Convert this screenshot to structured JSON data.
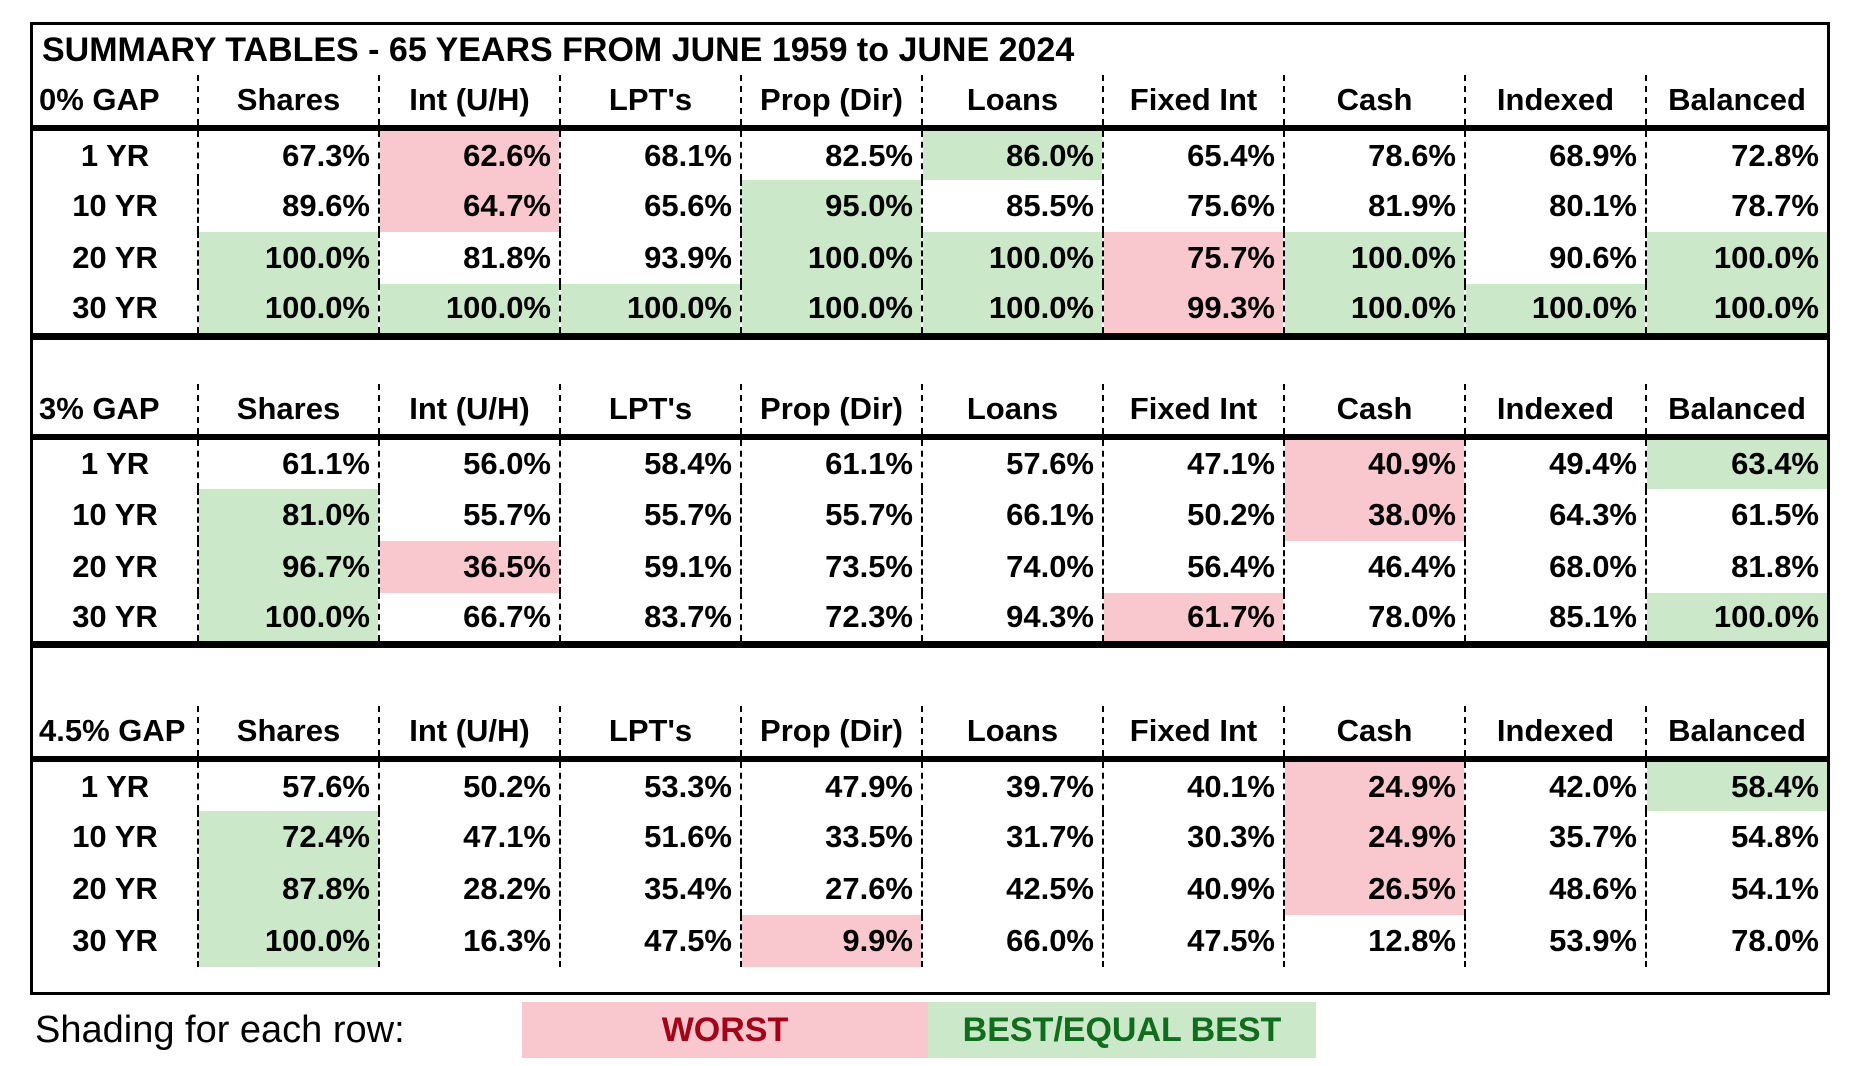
{
  "title": "SUMMARY TABLES - 65 YEARS FROM JUNE 1959 to JUNE 2024",
  "legend": {
    "prefix": "Shading for each row:",
    "worst_label": "WORST",
    "best_label": "BEST/EQUAL BEST"
  },
  "colors": {
    "worst_bg": "#f8c8ce",
    "worst_text": "#a80016",
    "best_bg": "#cbe8c9",
    "best_text": "#0f6e1c",
    "border": "#000000"
  },
  "chart_data": {
    "type": "table",
    "title": "SUMMARY TABLES - 65 YEARS FROM JUNE 1959 to JUNE 2024",
    "columns": [
      "Shares",
      "Int (U/H)",
      "LPT's",
      "Prop (Dir)",
      "Loans",
      "Fixed Int",
      "Cash",
      "Indexed",
      "Balanced"
    ],
    "row_labels": [
      "1 YR",
      "10 YR",
      "20 YR",
      "30 YR"
    ],
    "shading_codes": {
      "w": "worst (red)",
      "b": "best/equal best (green)",
      "": "none"
    },
    "tables": [
      {
        "name": "0% GAP",
        "values_pct": [
          [
            67.3,
            62.6,
            68.1,
            82.5,
            86.0,
            65.4,
            78.6,
            68.9,
            72.8
          ],
          [
            89.6,
            64.7,
            65.6,
            95.0,
            85.5,
            75.6,
            81.9,
            80.1,
            78.7
          ],
          [
            100.0,
            81.8,
            93.9,
            100.0,
            100.0,
            75.7,
            100.0,
            90.6,
            100.0
          ],
          [
            100.0,
            100.0,
            100.0,
            100.0,
            100.0,
            99.3,
            100.0,
            100.0,
            100.0
          ]
        ],
        "shading": [
          [
            "",
            "w",
            "",
            "",
            "b",
            "",
            "",
            "",
            ""
          ],
          [
            "",
            "w",
            "",
            "b",
            "",
            "",
            "",
            "",
            ""
          ],
          [
            "b",
            "",
            "",
            "b",
            "b",
            "w",
            "b",
            "",
            "b"
          ],
          [
            "b",
            "b",
            "b",
            "b",
            "b",
            "w",
            "b",
            "b",
            "b"
          ]
        ]
      },
      {
        "name": "3% GAP",
        "values_pct": [
          [
            61.1,
            56.0,
            58.4,
            61.1,
            57.6,
            47.1,
            40.9,
            49.4,
            63.4
          ],
          [
            81.0,
            55.7,
            55.7,
            55.7,
            66.1,
            50.2,
            38.0,
            64.3,
            61.5
          ],
          [
            96.7,
            36.5,
            59.1,
            73.5,
            74.0,
            56.4,
            46.4,
            68.0,
            81.8
          ],
          [
            100.0,
            66.7,
            83.7,
            72.3,
            94.3,
            61.7,
            78.0,
            85.1,
            100.0
          ]
        ],
        "shading": [
          [
            "",
            "",
            "",
            "",
            "",
            "",
            "w",
            "",
            "b"
          ],
          [
            "b",
            "",
            "",
            "",
            "",
            "",
            "w",
            "",
            ""
          ],
          [
            "b",
            "w",
            "",
            "",
            "",
            "",
            "",
            "",
            ""
          ],
          [
            "b",
            "",
            "",
            "",
            "",
            "w",
            "",
            "",
            "b"
          ]
        ]
      },
      {
        "name": "4.5% GAP",
        "values_pct": [
          [
            57.6,
            50.2,
            53.3,
            47.9,
            39.7,
            40.1,
            24.9,
            42.0,
            58.4
          ],
          [
            72.4,
            47.1,
            51.6,
            33.5,
            31.7,
            30.3,
            24.9,
            35.7,
            54.8
          ],
          [
            87.8,
            28.2,
            35.4,
            27.6,
            42.5,
            40.9,
            26.5,
            48.6,
            54.1
          ],
          [
            100.0,
            16.3,
            47.5,
            9.9,
            66.0,
            47.5,
            12.8,
            53.9,
            78.0
          ]
        ],
        "shading": [
          [
            "",
            "",
            "",
            "",
            "",
            "",
            "w",
            "",
            "b"
          ],
          [
            "b",
            "",
            "",
            "",
            "",
            "",
            "w",
            "",
            ""
          ],
          [
            "b",
            "",
            "",
            "",
            "",
            "",
            "w",
            "",
            ""
          ],
          [
            "b",
            "",
            "",
            "w",
            "",
            "",
            "",
            "",
            ""
          ]
        ]
      }
    ],
    "legend": {
      "worst": "WORST",
      "best": "BEST/EQUAL BEST"
    },
    "layout": "three stacked sub-tables sharing columns; dashed column separators; thick rule below headers and at table bottoms"
  }
}
